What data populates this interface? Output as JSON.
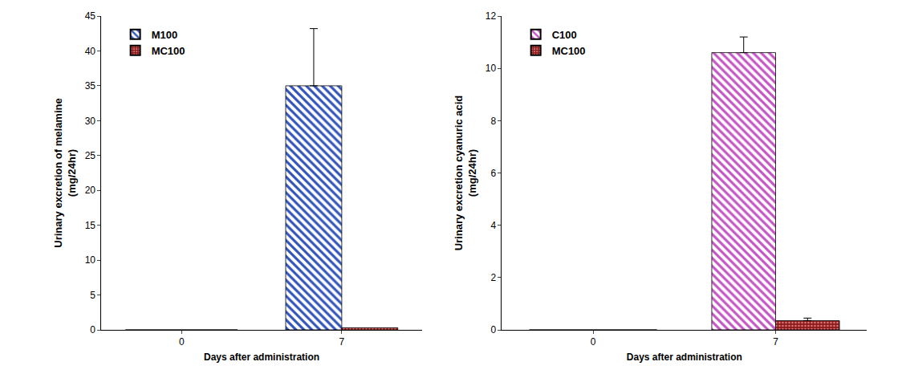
{
  "chart_data": [
    {
      "type": "bar",
      "y_label": [
        "Urinary excretion of melamine",
        "(mg/24hr)"
      ],
      "x_label": "Days after administration",
      "categories": [
        "0",
        "7"
      ],
      "series": [
        {
          "name": "M100",
          "color": "#3355bb",
          "marker": "hatch",
          "values": [
            0,
            35
          ],
          "errors": [
            null,
            8.2
          ]
        },
        {
          "name": "MC100",
          "color": "#8b1a1a",
          "marker": "dots",
          "values": [
            0,
            0.3
          ],
          "errors": [
            null,
            null
          ]
        }
      ],
      "ylim": [
        0,
        45
      ],
      "yticks": [
        0,
        5,
        10,
        15,
        20,
        25,
        30,
        35,
        40,
        45
      ],
      "grid": false,
      "legend": "upper left"
    },
    {
      "type": "bar",
      "y_label": [
        "Urinary excretion cyanuric acid",
        "(mg/24hr)"
      ],
      "x_label": "Days after administration",
      "categories": [
        "0",
        "7"
      ],
      "series": [
        {
          "name": "C100",
          "color": "#c455c4",
          "marker": "hatch",
          "values": [
            0,
            10.6
          ],
          "errors": [
            null,
            0.6
          ]
        },
        {
          "name": "MC100",
          "color": "#8b1a1a",
          "marker": "dots",
          "values": [
            0,
            0.35
          ],
          "errors": [
            null,
            0.1
          ]
        }
      ],
      "ylim": [
        0,
        12
      ],
      "yticks": [
        0,
        2,
        4,
        6,
        8,
        10,
        12
      ],
      "grid": false,
      "legend": "upper left"
    }
  ]
}
